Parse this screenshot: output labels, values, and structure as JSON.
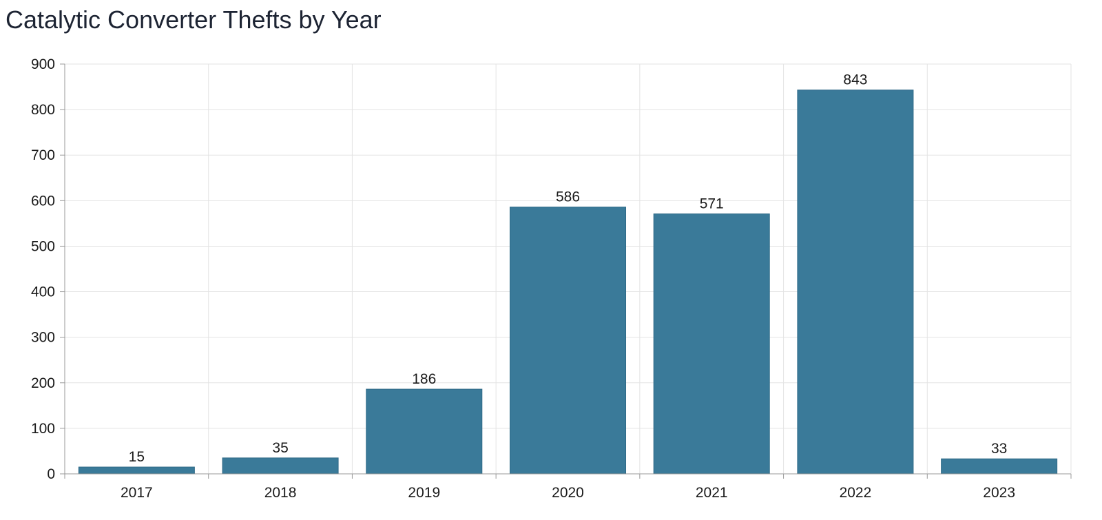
{
  "chart_data": {
    "type": "bar",
    "title": "Catalytic Converter Thefts by Year",
    "xlabel": "",
    "ylabel": "",
    "categories": [
      "2017",
      "2018",
      "2019",
      "2020",
      "2021",
      "2022",
      "2023"
    ],
    "values": [
      15,
      35,
      186,
      586,
      571,
      843,
      33
    ],
    "data_labels": [
      "15",
      "35",
      "186",
      "586",
      "571",
      "843",
      "33"
    ],
    "ylim": [
      0,
      900
    ],
    "y_ticks": [
      0,
      100,
      200,
      300,
      400,
      500,
      600,
      700,
      800,
      900
    ],
    "y_tick_labels": [
      "0",
      "100",
      "200",
      "300",
      "400",
      "500",
      "600",
      "700",
      "800",
      "900"
    ],
    "grid": true,
    "legend": "none",
    "colors": {
      "bar": "#3a7a99",
      "bar_edge": "#2f6a87",
      "grid": "#e3e3e3",
      "axis": "#999999",
      "text": "#1a1a1a",
      "title": "#1d2433"
    }
  }
}
